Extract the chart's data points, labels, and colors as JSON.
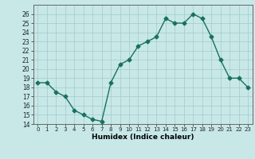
{
  "x": [
    0,
    1,
    2,
    3,
    4,
    5,
    6,
    7,
    8,
    9,
    10,
    11,
    12,
    13,
    14,
    15,
    16,
    17,
    18,
    19,
    20,
    21,
    22,
    23
  ],
  "y": [
    18.5,
    18.5,
    17.5,
    17.0,
    15.5,
    15.0,
    14.5,
    14.3,
    18.5,
    20.5,
    21.0,
    22.5,
    23.0,
    23.5,
    25.5,
    25.0,
    25.0,
    26.0,
    25.5,
    23.5,
    21.0,
    19.0,
    19.0,
    18.0
  ],
  "color": "#1a7060",
  "bg_color": "#c8e8e8",
  "grid_color": "#a8cece",
  "xlabel": "Humidex (Indice chaleur)",
  "ylim": [
    14,
    27
  ],
  "xlim": [
    -0.5,
    23.5
  ],
  "yticks": [
    14,
    15,
    16,
    17,
    18,
    19,
    20,
    21,
    22,
    23,
    24,
    25,
    26
  ],
  "xticks": [
    0,
    1,
    2,
    3,
    4,
    5,
    6,
    7,
    8,
    9,
    10,
    11,
    12,
    13,
    14,
    15,
    16,
    17,
    18,
    19,
    20,
    21,
    22,
    23
  ],
  "marker": "D",
  "markersize": 2.5,
  "linewidth": 1.0
}
